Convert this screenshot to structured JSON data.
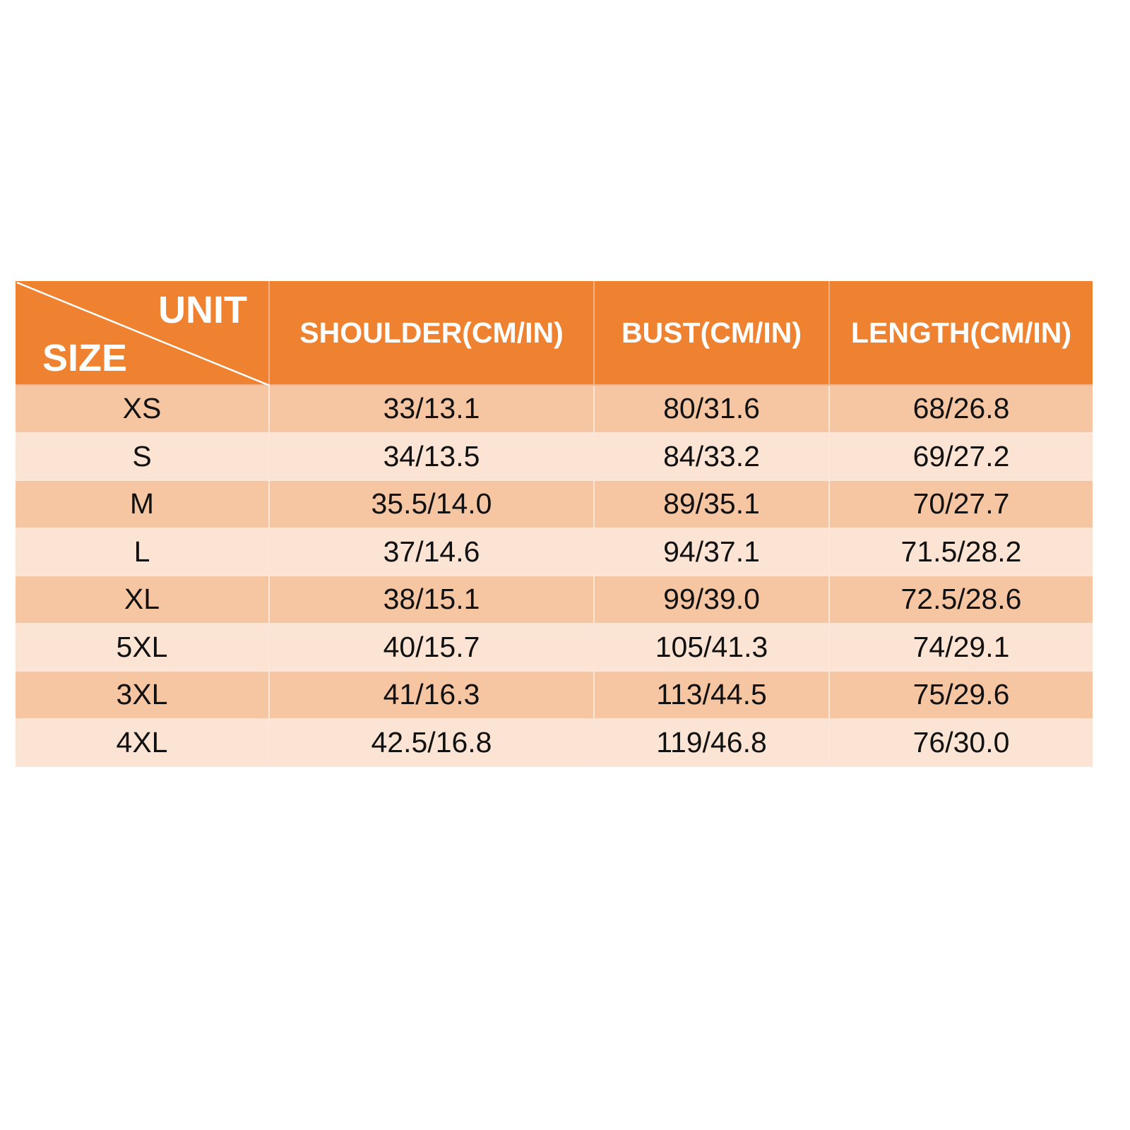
{
  "header": {
    "corner_top": "UNIT",
    "corner_bottom": "SIZE",
    "columns": [
      "SHOULDER(CM/IN)",
      "BUST(CM/IN)",
      "LENGTH(CM/IN)"
    ]
  },
  "rows": [
    [
      "XS",
      "33/13.1",
      "80/31.6",
      "68/26.8"
    ],
    [
      "S",
      "34/13.5",
      "84/33.2",
      "69/27.2"
    ],
    [
      "M",
      "35.5/14.0",
      "89/35.1",
      "70/27.7"
    ],
    [
      "L",
      "37/14.6",
      "94/37.1",
      "71.5/28.2"
    ],
    [
      "XL",
      "38/15.1",
      "99/39.0",
      "72.5/28.6"
    ],
    [
      "5XL",
      "40/15.7",
      "105/41.3",
      "74/29.1"
    ],
    [
      "3XL",
      "41/16.3",
      "113/44.5",
      "75/29.6"
    ],
    [
      "4XL",
      "42.5/16.8",
      "119/46.8",
      "76/30.0"
    ]
  ],
  "colors": {
    "header": "#ee8230",
    "row_dark": "#f6c6a3",
    "row_light": "#fce4d4"
  }
}
